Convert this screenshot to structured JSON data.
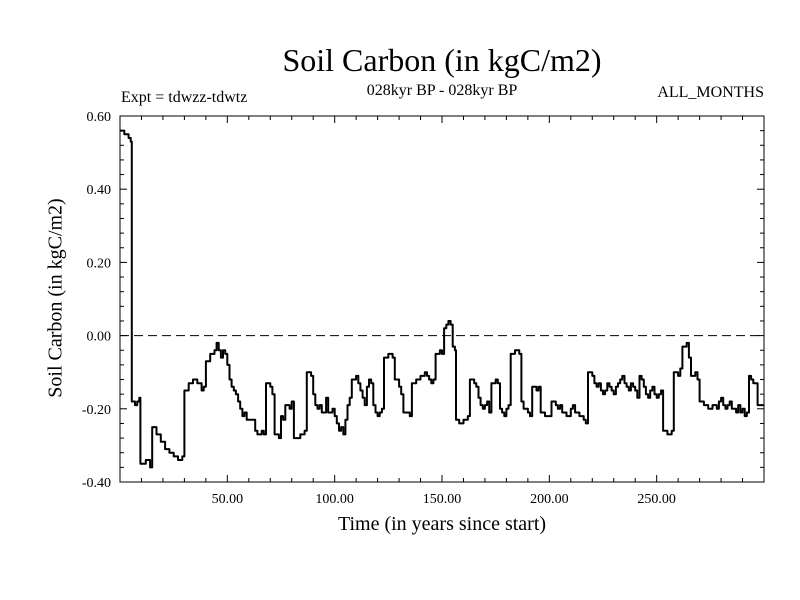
{
  "title": "Soil Carbon (in kgC/m2)",
  "subtitle": "028kyr BP - 028kyr BP",
  "experiment_label": "Expt = tdwzz-tdwtz",
  "months_label": "ALL_MONTHS",
  "chart_data": {
    "type": "line",
    "title": "Soil Carbon (in kgC/m2)",
    "xlabel": "Time (in years since start)",
    "ylabel": "Soil Carbon (in kgC/m2)",
    "xlim": [
      0,
      300
    ],
    "ylim": [
      -0.4,
      0.6
    ],
    "x_ticks": [
      50,
      100,
      150,
      200,
      250
    ],
    "x_tick_labels": [
      "50.00",
      "100.00",
      "150.00",
      "200.00",
      "250.00"
    ],
    "y_ticks": [
      -0.4,
      -0.2,
      0.0,
      0.2,
      0.4,
      0.6
    ],
    "y_tick_labels": [
      "-0.40",
      "-0.20",
      "0.00",
      "0.20",
      "0.40",
      "0.60"
    ],
    "reference_line": {
      "y": 0.0,
      "style": "dashed"
    },
    "series": [
      {
        "color": "#000000",
        "points": [
          [
            0,
            0.56
          ],
          [
            2,
            0.55
          ],
          [
            4,
            0.54
          ],
          [
            5,
            0.53
          ],
          [
            5.5,
            -0.18
          ],
          [
            7,
            -0.19
          ],
          [
            8,
            -0.18
          ],
          [
            9,
            -0.17
          ],
          [
            9.5,
            -0.35
          ],
          [
            12,
            -0.34
          ],
          [
            14,
            -0.36
          ],
          [
            15,
            -0.25
          ],
          [
            17,
            -0.27
          ],
          [
            19,
            -0.29
          ],
          [
            21,
            -0.31
          ],
          [
            23,
            -0.32
          ],
          [
            25,
            -0.33
          ],
          [
            27,
            -0.34
          ],
          [
            29,
            -0.33
          ],
          [
            30,
            -0.15
          ],
          [
            32,
            -0.13
          ],
          [
            34,
            -0.12
          ],
          [
            36,
            -0.13
          ],
          [
            38,
            -0.15
          ],
          [
            39,
            -0.14
          ],
          [
            40,
            -0.07
          ],
          [
            42,
            -0.05
          ],
          [
            44,
            -0.04
          ],
          [
            45,
            -0.02
          ],
          [
            46,
            -0.04
          ],
          [
            47,
            -0.06
          ],
          [
            48,
            -0.04
          ],
          [
            49,
            -0.05
          ],
          [
            50,
            -0.08
          ],
          [
            51,
            -0.12
          ],
          [
            52,
            -0.14
          ],
          [
            53,
            -0.15
          ],
          [
            54,
            -0.16
          ],
          [
            55,
            -0.18
          ],
          [
            56,
            -0.2
          ],
          [
            57,
            -0.22
          ],
          [
            58,
            -0.21
          ],
          [
            59,
            -0.23
          ],
          [
            61,
            -0.23
          ],
          [
            63,
            -0.26
          ],
          [
            64,
            -0.27
          ],
          [
            66,
            -0.26
          ],
          [
            67,
            -0.27
          ],
          [
            68,
            -0.13
          ],
          [
            70,
            -0.14
          ],
          [
            71,
            -0.16
          ],
          [
            72,
            -0.27
          ],
          [
            74,
            -0.28
          ],
          [
            75,
            -0.22
          ],
          [
            76,
            -0.23
          ],
          [
            77,
            -0.19
          ],
          [
            79,
            -0.2
          ],
          [
            80,
            -0.18
          ],
          [
            81,
            -0.28
          ],
          [
            84,
            -0.27
          ],
          [
            86,
            -0.26
          ],
          [
            87,
            -0.1
          ],
          [
            89,
            -0.11
          ],
          [
            90,
            -0.16
          ],
          [
            91,
            -0.19
          ],
          [
            92,
            -0.2
          ],
          [
            93,
            -0.19
          ],
          [
            94,
            -0.21
          ],
          [
            95,
            -0.21
          ],
          [
            96,
            -0.17
          ],
          [
            97,
            -0.21
          ],
          [
            99,
            -0.2
          ],
          [
            100,
            -0.22
          ],
          [
            101,
            -0.24
          ],
          [
            102,
            -0.26
          ],
          [
            103,
            -0.25
          ],
          [
            104,
            -0.27
          ],
          [
            105,
            -0.23
          ],
          [
            106,
            -0.19
          ],
          [
            107,
            -0.17
          ],
          [
            108,
            -0.12
          ],
          [
            110,
            -0.11
          ],
          [
            111,
            -0.13
          ],
          [
            112,
            -0.15
          ],
          [
            113,
            -0.17
          ],
          [
            114,
            -0.19
          ],
          [
            115,
            -0.14
          ],
          [
            116,
            -0.12
          ],
          [
            117,
            -0.13
          ],
          [
            118,
            -0.19
          ],
          [
            119,
            -0.21
          ],
          [
            120,
            -0.22
          ],
          [
            121,
            -0.21
          ],
          [
            122,
            -0.2
          ],
          [
            123,
            -0.06
          ],
          [
            125,
            -0.05
          ],
          [
            127,
            -0.06
          ],
          [
            128,
            -0.12
          ],
          [
            130,
            -0.14
          ],
          [
            131,
            -0.16
          ],
          [
            132,
            -0.21
          ],
          [
            134,
            -0.21
          ],
          [
            135,
            -0.22
          ],
          [
            136,
            -0.13
          ],
          [
            138,
            -0.12
          ],
          [
            140,
            -0.11
          ],
          [
            142,
            -0.1
          ],
          [
            143,
            -0.11
          ],
          [
            144,
            -0.12
          ],
          [
            145,
            -0.13
          ],
          [
            146,
            -0.12
          ],
          [
            147,
            -0.05
          ],
          [
            149,
            -0.04
          ],
          [
            150,
            -0.05
          ],
          [
            151,
            0.02
          ],
          [
            152,
            0.03
          ],
          [
            153,
            0.04
          ],
          [
            154,
            0.03
          ],
          [
            155,
            -0.03
          ],
          [
            156,
            -0.04
          ],
          [
            156.5,
            -0.23
          ],
          [
            158,
            -0.24
          ],
          [
            160,
            -0.23
          ],
          [
            162,
            -0.22
          ],
          [
            163,
            -0.12
          ],
          [
            165,
            -0.13
          ],
          [
            166,
            -0.14
          ],
          [
            167,
            -0.17
          ],
          [
            168,
            -0.19
          ],
          [
            169,
            -0.2
          ],
          [
            170,
            -0.19
          ],
          [
            171,
            -0.18
          ],
          [
            172,
            -0.21
          ],
          [
            173,
            -0.13
          ],
          [
            175,
            -0.12
          ],
          [
            176,
            -0.13
          ],
          [
            177,
            -0.2
          ],
          [
            178,
            -0.21
          ],
          [
            179,
            -0.22
          ],
          [
            180,
            -0.2
          ],
          [
            181,
            -0.19
          ],
          [
            182,
            -0.05
          ],
          [
            184,
            -0.04
          ],
          [
            186,
            -0.05
          ],
          [
            187,
            -0.18
          ],
          [
            188,
            -0.2
          ],
          [
            190,
            -0.21
          ],
          [
            191,
            -0.22
          ],
          [
            192,
            -0.14
          ],
          [
            194,
            -0.15
          ],
          [
            195,
            -0.14
          ],
          [
            196,
            -0.21
          ],
          [
            198,
            -0.22
          ],
          [
            200,
            -0.22
          ],
          [
            201,
            -0.18
          ],
          [
            203,
            -0.19
          ],
          [
            204,
            -0.2
          ],
          [
            205,
            -0.19
          ],
          [
            206,
            -0.21
          ],
          [
            208,
            -0.22
          ],
          [
            210,
            -0.2
          ],
          [
            211,
            -0.19
          ],
          [
            212,
            -0.21
          ],
          [
            214,
            -0.22
          ],
          [
            216,
            -0.23
          ],
          [
            217,
            -0.24
          ],
          [
            218,
            -0.1
          ],
          [
            220,
            -0.11
          ],
          [
            221,
            -0.13
          ],
          [
            222,
            -0.14
          ],
          [
            223,
            -0.13
          ],
          [
            224,
            -0.15
          ],
          [
            225,
            -0.16
          ],
          [
            226,
            -0.15
          ],
          [
            227,
            -0.13
          ],
          [
            228,
            -0.14
          ],
          [
            229,
            -0.15
          ],
          [
            230,
            -0.16
          ],
          [
            231,
            -0.14
          ],
          [
            232,
            -0.13
          ],
          [
            233,
            -0.12
          ],
          [
            234,
            -0.11
          ],
          [
            235,
            -0.13
          ],
          [
            236,
            -0.14
          ],
          [
            237,
            -0.15
          ],
          [
            238,
            -0.13
          ],
          [
            239,
            -0.14
          ],
          [
            240,
            -0.15
          ],
          [
            241,
            -0.17
          ],
          [
            242,
            -0.11
          ],
          [
            243,
            -0.12
          ],
          [
            244,
            -0.14
          ],
          [
            245,
            -0.16
          ],
          [
            246,
            -0.17
          ],
          [
            247,
            -0.15
          ],
          [
            248,
            -0.14
          ],
          [
            249,
            -0.16
          ],
          [
            250,
            -0.17
          ],
          [
            251,
            -0.16
          ],
          [
            252,
            -0.15
          ],
          [
            253,
            -0.26
          ],
          [
            255,
            -0.27
          ],
          [
            257,
            -0.26
          ],
          [
            258,
            -0.1
          ],
          [
            260,
            -0.11
          ],
          [
            261,
            -0.09
          ],
          [
            262,
            -0.03
          ],
          [
            264,
            -0.02
          ],
          [
            265,
            -0.06
          ],
          [
            266,
            -0.11
          ],
          [
            268,
            -0.1
          ],
          [
            269,
            -0.12
          ],
          [
            270,
            -0.18
          ],
          [
            272,
            -0.19
          ],
          [
            274,
            -0.2
          ],
          [
            276,
            -0.19
          ],
          [
            278,
            -0.2
          ],
          [
            279,
            -0.18
          ],
          [
            280,
            -0.17
          ],
          [
            281,
            -0.19
          ],
          [
            282,
            -0.2
          ],
          [
            283,
            -0.19
          ],
          [
            284,
            -0.18
          ],
          [
            285,
            -0.2
          ],
          [
            287,
            -0.21
          ],
          [
            288,
            -0.19
          ],
          [
            289,
            -0.21
          ],
          [
            290,
            -0.2
          ],
          [
            291,
            -0.22
          ],
          [
            292,
            -0.21
          ],
          [
            293,
            -0.11
          ],
          [
            294,
            -0.12
          ],
          [
            295,
            -0.13
          ],
          [
            296,
            -0.13
          ],
          [
            297,
            -0.19
          ],
          [
            299,
            -0.19
          ],
          [
            300,
            -0.19
          ]
        ]
      }
    ]
  }
}
